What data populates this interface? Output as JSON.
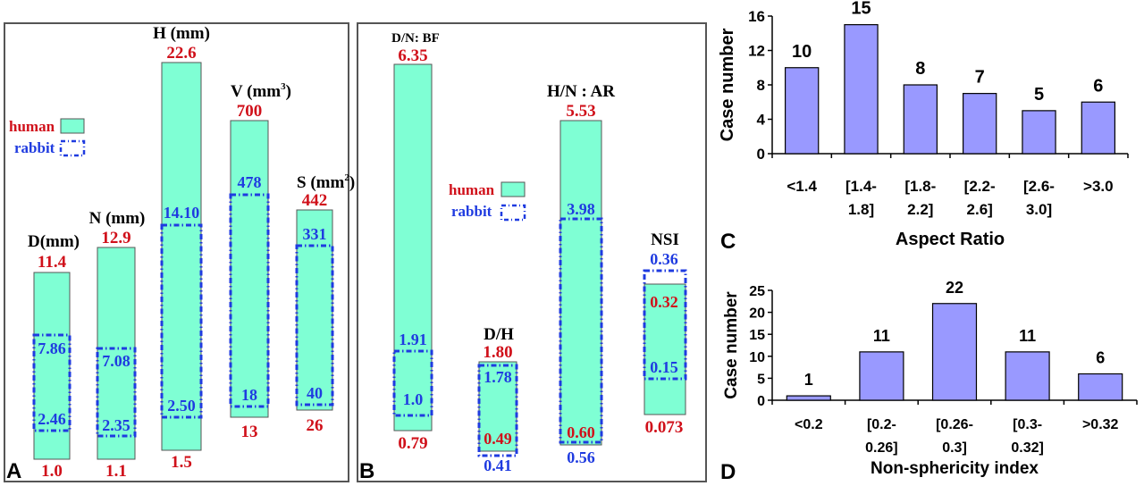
{
  "colors": {
    "human_fill": "#7FFFD4",
    "rabbit_stroke": "#1F3BE0",
    "max_min_text": "#D0101A",
    "bar_fill": "#9999FF",
    "frame": "#555555"
  },
  "panels": {
    "A": {
      "letter": "A",
      "legend": {
        "human": "human",
        "rabbit": "rabbit"
      },
      "columns": [
        {
          "key": "D",
          "title": "D(mm)",
          "human_max": "11.4",
          "human_min": "1.0",
          "rabbit_max": "7.86",
          "rabbit_min": "2.46"
        },
        {
          "key": "N",
          "title": "N (mm)",
          "human_max": "12.9",
          "human_min": "1.1",
          "rabbit_max": "7.08",
          "rabbit_min": "2.35"
        },
        {
          "key": "H",
          "title": "H (mm)",
          "human_max": "22.6",
          "human_min": "1.5",
          "rabbit_max": "14.10",
          "rabbit_min": "2.50"
        },
        {
          "key": "V",
          "title": "V (mm",
          "title_sup": "3",
          "title_end": ")",
          "human_max": "700",
          "human_min": "13",
          "rabbit_max": "478",
          "rabbit_min": "18"
        },
        {
          "key": "S",
          "title": "S (mm",
          "title_sup": "2",
          "title_end": ")",
          "human_max": "442",
          "human_min": "26",
          "rabbit_max": "331",
          "rabbit_min": "40"
        }
      ]
    },
    "B": {
      "letter": "B",
      "legend": {
        "human": "human",
        "rabbit": "rabbit"
      },
      "columns": [
        {
          "key": "DN",
          "title": "D/N: BF",
          "human_max": "6.35",
          "human_min": "0.79",
          "rabbit_max": "1.91",
          "rabbit_min": "1.0"
        },
        {
          "key": "DH",
          "title": "D/H",
          "human_max": "1.80",
          "human_min": "0.49",
          "rabbit_max": "1.78",
          "rabbit_min": "0.41"
        },
        {
          "key": "HN",
          "title": "H/N : AR",
          "human_max": "5.53",
          "human_min": "0.60",
          "rabbit_max": "3.98",
          "rabbit_min": "0.56"
        },
        {
          "key": "NSI",
          "title": "NSI",
          "human_max": "0.32",
          "human_min": "0.073",
          "rabbit_max": "0.36",
          "rabbit_min": "0.15"
        }
      ]
    }
  },
  "chart_data": [
    {
      "type": "bar",
      "panel": "C",
      "categories": [
        [
          "<1.4"
        ],
        [
          "[1.4-",
          "1.8]"
        ],
        [
          "[1.8-",
          "2.2]"
        ],
        [
          "[2.2-",
          "2.6]"
        ],
        [
          "[2.6-",
          "3.0]"
        ],
        [
          ">3.0"
        ]
      ],
      "values": [
        10,
        15,
        8,
        7,
        5,
        6
      ],
      "value_labels": [
        "10",
        "15",
        "8",
        "7",
        "5",
        "6"
      ],
      "xlabel": "Aspect Ratio",
      "ylabel": "Case number",
      "ylim": [
        0,
        16
      ],
      "yticks": [
        "0",
        "4",
        "8",
        "12",
        "16"
      ],
      "grid": false
    },
    {
      "type": "bar",
      "panel": "D",
      "categories": [
        [
          "<0.2"
        ],
        [
          "[0.2-",
          "0.26]"
        ],
        [
          "[0.26-",
          "0.3]"
        ],
        [
          "[0.3-",
          "0.32]"
        ],
        [
          ">0.32"
        ]
      ],
      "values": [
        1,
        11,
        22,
        11,
        6
      ],
      "value_labels": [
        "1",
        "11",
        "22",
        "11",
        "6"
      ],
      "xlabel": "Non-sphericity index",
      "ylabel": "Case number",
      "ylim": [
        0,
        25
      ],
      "yticks": [
        "0",
        "5",
        "10",
        "15",
        "20",
        "25"
      ],
      "grid": false
    }
  ]
}
